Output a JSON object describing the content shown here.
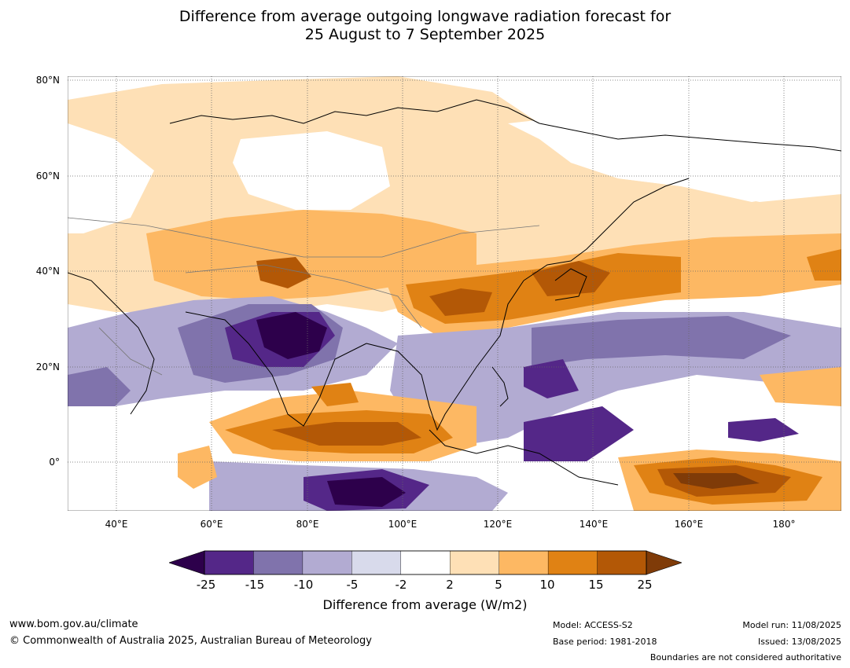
{
  "title_line1": "Difference from average outgoing longwave radiation forecast for",
  "title_line2": "25 August to 7 September 2025",
  "lat_labels": [
    "80°N",
    "60°N",
    "40°N",
    "20°N",
    "0°"
  ],
  "lon_labels": [
    "40°E",
    "60°E",
    "80°E",
    "100°E",
    "120°E",
    "140°E",
    "160°E",
    "180°"
  ],
  "colorbar": {
    "ticks": [
      "-25",
      "-15",
      "-10",
      "-5",
      "-2",
      "2",
      "5",
      "10",
      "15",
      "25"
    ],
    "label": "Difference from average (W/m2)",
    "colors": {
      "below_min": "#2d004b",
      "n25_n15": "#542788",
      "n15_n10": "#8073ac",
      "n10_n5": "#b2abd2",
      "n5_n2": "#d8daeb",
      "n2_2": "#ffffff",
      "p2_5": "#fee0b6",
      "p5_10": "#fdb863",
      "p10_15": "#e08214",
      "p15_25": "#b35806",
      "above_max": "#7f3b08"
    }
  },
  "footer": {
    "url": "www.bom.gov.au/climate",
    "copyright": "© Commonwealth of Australia 2025, Australian Bureau of Meteorology",
    "model": "Model: ACCESS-S2",
    "base_period": "Base period: 1981-2018",
    "model_run": "Model run: 11/08/2025",
    "issued": "Issued: 13/08/2025",
    "disclaimer": "Boundaries are not considered authoritative"
  }
}
